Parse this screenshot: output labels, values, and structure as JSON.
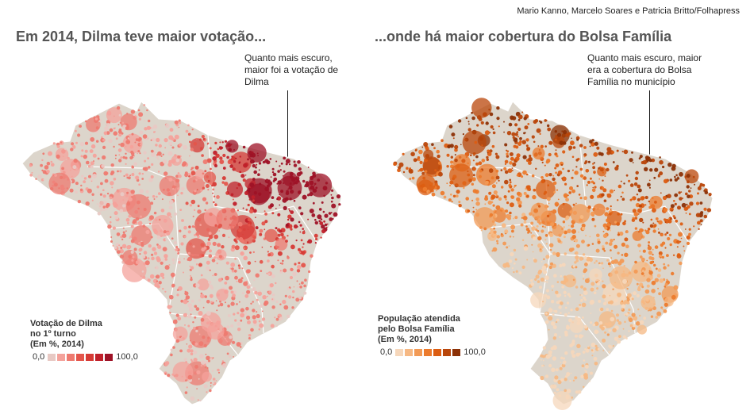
{
  "credit": "Mario Kanno, Marcelo Soares e Patricia Britto/Folhapress",
  "left_map": {
    "title": "Em 2014, Dilma teve maior votação...",
    "callout": "Quanto mais escuro, maior foi a votação de Dilma",
    "legend_title_1": "Votação de Dilma",
    "legend_title_2": "no 1º turno",
    "legend_title_3": "(Em %, 2014)",
    "legend_min": "0,0",
    "legend_max": "100,0",
    "colors": [
      "#e8c9c4",
      "#f4a29b",
      "#ee7a70",
      "#e4554b",
      "#d63a35",
      "#c0202a",
      "#9e1226"
    ]
  },
  "right_map": {
    "title": "...onde há maior cobertura do Bolsa Família",
    "callout": "Quanto mais escuro, maior era a cobertura do Bolsa Família no município",
    "legend_title_1": "População atendida",
    "legend_title_2": "pelo Bolsa Família",
    "legend_title_3": "(Em %, 2014)",
    "legend_min": "0,0",
    "legend_max": "100,0",
    "colors": [
      "#f6d7bb",
      "#f6b883",
      "#f29a55",
      "#ec7b2d",
      "#dc5d12",
      "#b9460a",
      "#8c3106"
    ]
  },
  "map_land_color": "#dcd5cb"
}
